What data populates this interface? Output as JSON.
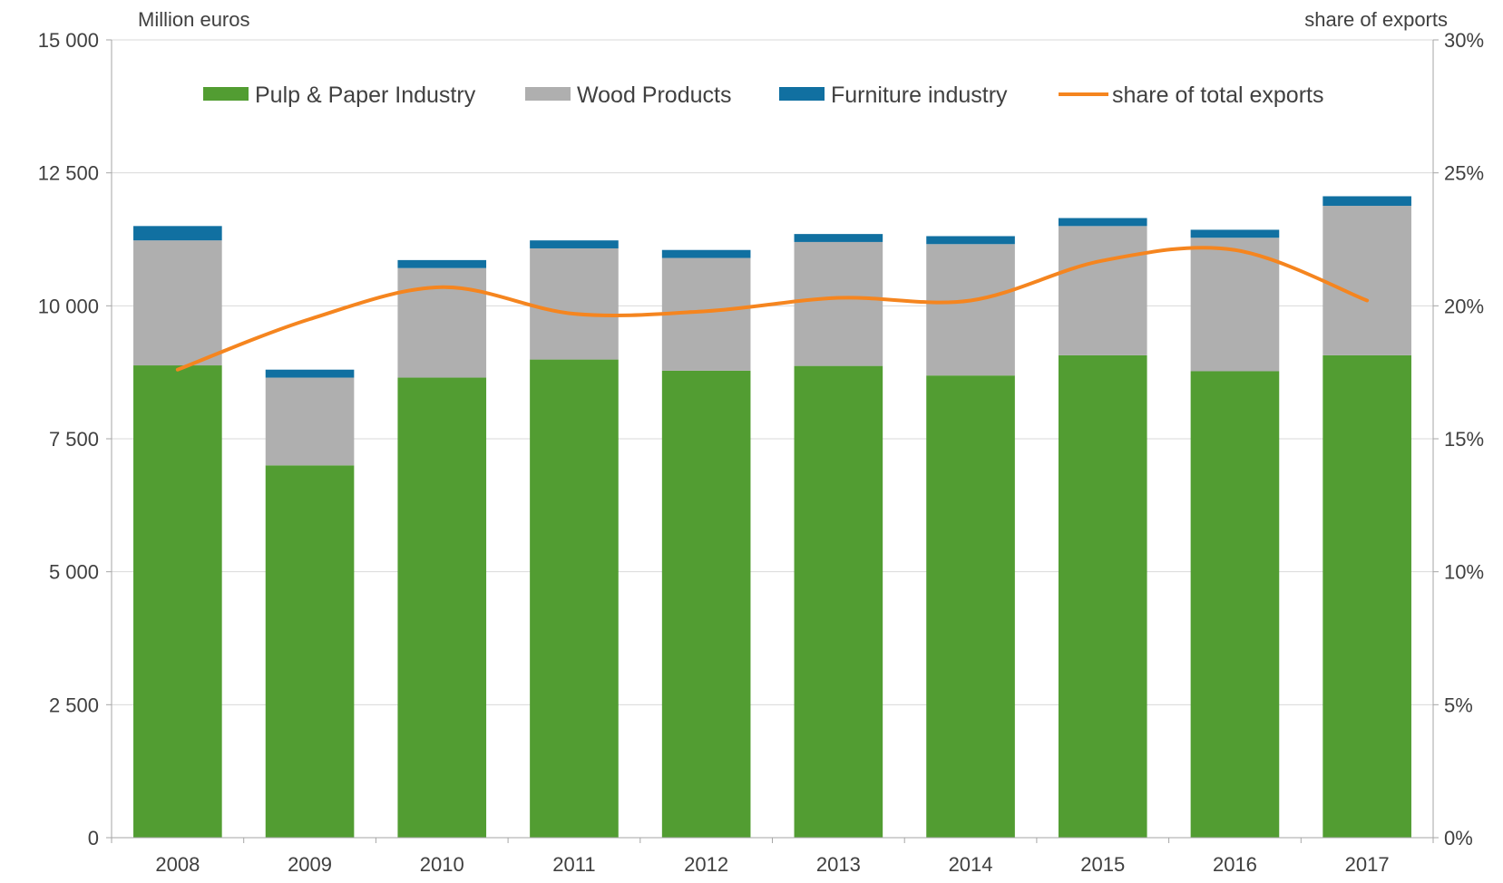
{
  "chart_data": {
    "type": "bar",
    "stacked": true,
    "categories": [
      "2008",
      "2009",
      "2010",
      "2011",
      "2012",
      "2013",
      "2014",
      "2015",
      "2016",
      "2017"
    ],
    "series": [
      {
        "name": "Pulp & Paper Industry",
        "axis": "left",
        "color": "#529d32",
        "values": [
          8880,
          7000,
          8650,
          8990,
          8780,
          8870,
          8690,
          9070,
          8770,
          9070
        ]
      },
      {
        "name": "Wood Products",
        "axis": "left",
        "color": "#afafaf",
        "values": [
          2350,
          1650,
          2060,
          2090,
          2120,
          2330,
          2470,
          2430,
          2510,
          2810
        ]
      },
      {
        "name": "Furniture industry",
        "axis": "left",
        "color": "#1170a1",
        "values": [
          270,
          150,
          150,
          150,
          150,
          150,
          150,
          150,
          150,
          180
        ]
      },
      {
        "name": "share of total exports",
        "type": "line",
        "axis": "right",
        "color": "#f5851f",
        "values": [
          17.6,
          19.5,
          20.7,
          19.7,
          19.8,
          20.3,
          20.2,
          21.7,
          22.1,
          20.2
        ]
      }
    ],
    "left_axis": {
      "unit_label": "Million euros",
      "ylim": [
        0,
        15000
      ],
      "ticks": [
        0,
        2500,
        5000,
        7500,
        10000,
        12500,
        15000
      ],
      "tick_labels": [
        "0",
        "2 500",
        "5 000",
        "7 500",
        "10 000",
        "12 500",
        "15 000"
      ]
    },
    "right_axis": {
      "unit_label": "share of exports",
      "ylim": [
        0,
        30
      ],
      "ticks": [
        0,
        5,
        10,
        15,
        20,
        25,
        30
      ],
      "tick_labels": [
        "0%",
        "5%",
        "10%",
        "15%",
        "20%",
        "25%",
        "30%"
      ]
    },
    "grid": true,
    "legend_position": "top"
  }
}
